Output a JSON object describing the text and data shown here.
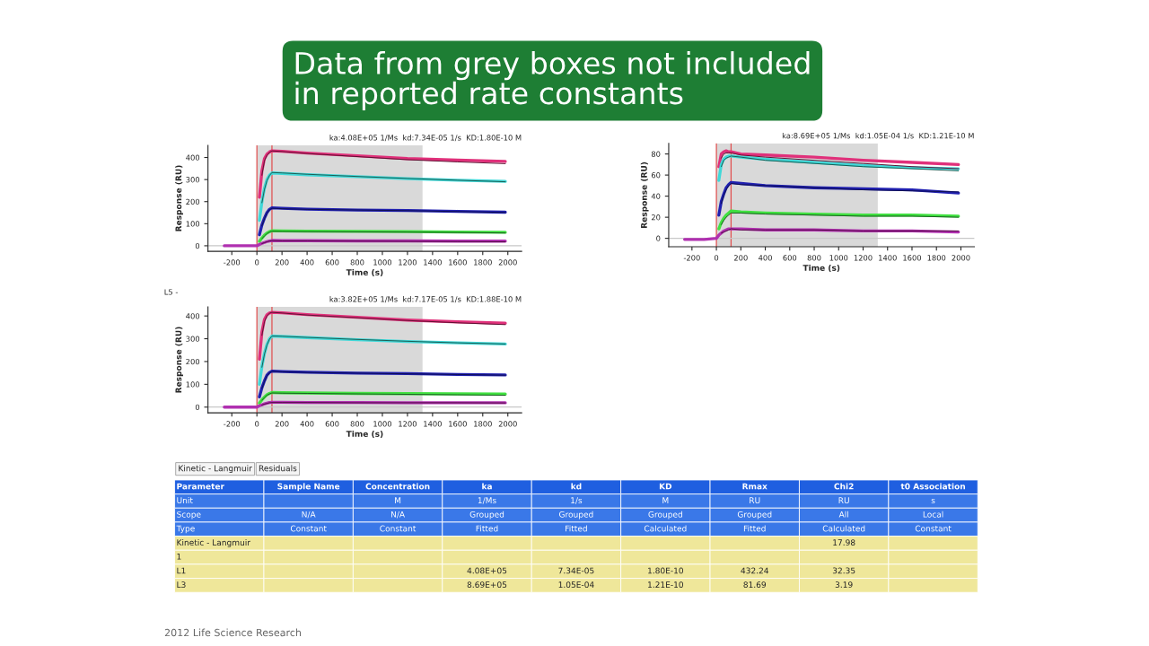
{
  "chart_data": [
    {
      "type": "other",
      "title": "Data from grey boxes not included\nin reported rate constants"
    },
    {
      "type": "line",
      "title": "ka:4.08E+05 1/Ms  kd:7.34E-05 1/s  KD:1.80E-10 M",
      "xlabel": "Time (s)",
      "ylabel": "Response (RU)",
      "x": [
        -260,
        -100,
        0,
        20,
        40,
        60,
        80,
        100,
        120,
        200,
        400,
        800,
        1200,
        1600,
        1980
      ],
      "xlim": [
        -390,
        2110
      ],
      "ylim": [
        -25,
        455
      ],
      "xticks": [
        -200,
        0,
        200,
        400,
        600,
        800,
        1000,
        1200,
        1400,
        1600,
        1800,
        2000
      ],
      "yticks": [
        0,
        100,
        200,
        300,
        400
      ],
      "bands": [
        {
          "axis": "x",
          "from": 0,
          "to": 1320,
          "color": "#d9d9d9"
        }
      ],
      "ref_lines": [
        {
          "axis": "x",
          "value": 0,
          "color": "#e05050"
        },
        {
          "axis": "x",
          "value": 120,
          "color": "#e05050"
        },
        {
          "axis": "y",
          "value": 0,
          "color": "#c8c8c8"
        }
      ],
      "series": [
        {
          "color": "#e0307a",
          "values": [
            null,
            null,
            null,
            220,
            340,
            395,
            415,
            425,
            430,
            428,
            420,
            408,
            395,
            388,
            382
          ]
        },
        {
          "color": "#5a1030",
          "values": [
            null,
            null,
            null,
            null,
            320,
            385,
            410,
            423,
            430,
            427,
            418,
            404,
            390,
            380,
            372
          ]
        },
        {
          "color": "#40d8d8",
          "values": [
            null,
            null,
            null,
            115,
            200,
            260,
            300,
            320,
            330,
            328,
            322,
            313,
            304,
            297,
            292
          ]
        },
        {
          "color": "#1a5a50",
          "values": [
            null,
            null,
            null,
            null,
            195,
            255,
            295,
            318,
            332,
            330,
            324,
            314,
            305,
            297,
            290
          ]
        },
        {
          "color": "#2020b0",
          "values": [
            null,
            null,
            null,
            50,
            95,
            125,
            150,
            165,
            172,
            170,
            166,
            162,
            160,
            156,
            152
          ]
        },
        {
          "color": "#101050",
          "values": [
            null,
            null,
            null,
            null,
            90,
            122,
            148,
            163,
            170,
            168,
            165,
            162,
            159,
            155,
            151
          ]
        },
        {
          "color": "#40e040",
          "values": [
            null,
            null,
            null,
            20,
            35,
            48,
            58,
            64,
            68,
            67,
            66,
            65,
            64,
            62,
            61
          ]
        },
        {
          "color": "#1a5a20",
          "values": [
            null,
            null,
            null,
            null,
            32,
            45,
            55,
            62,
            66,
            65,
            64,
            63,
            62,
            60,
            58
          ]
        },
        {
          "color": "#b030b0",
          "values": [
            0,
            0,
            0,
            6,
            11,
            15,
            19,
            22,
            24,
            23,
            23,
            22,
            22,
            21,
            21
          ]
        },
        {
          "color": "#500a40",
          "values": [
            null,
            null,
            null,
            null,
            10,
            14,
            18,
            21,
            23,
            22,
            22,
            21,
            20,
            19,
            18
          ]
        }
      ]
    },
    {
      "type": "line",
      "title": "ka:8.69E+05 1/Ms  kd:1.05E-04 1/s  KD:1.21E-10 M",
      "xlabel": "Time (s)",
      "ylabel": "Response (RU)",
      "x": [
        -260,
        -100,
        0,
        20,
        40,
        60,
        80,
        100,
        120,
        200,
        400,
        800,
        1200,
        1600,
        1980
      ],
      "xlim": [
        -390,
        2110
      ],
      "ylim": [
        -8,
        90
      ],
      "xticks": [
        -200,
        0,
        200,
        400,
        600,
        800,
        1000,
        1200,
        1400,
        1600,
        1800,
        2000
      ],
      "yticks": [
        0,
        20,
        40,
        60,
        80
      ],
      "bands": [
        {
          "axis": "x",
          "from": 0,
          "to": 1320,
          "color": "#d9d9d9"
        }
      ],
      "ref_lines": [
        {
          "axis": "x",
          "value": 0,
          "color": "#e05050"
        },
        {
          "axis": "x",
          "value": 120,
          "color": "#e05050"
        },
        {
          "axis": "y",
          "value": 0,
          "color": "#c8c8c8"
        }
      ],
      "series": [
        {
          "color": "#e0307a",
          "values": [
            null,
            null,
            null,
            68,
            80,
            82,
            83,
            82,
            82,
            80,
            79,
            77,
            74,
            72,
            70
          ]
        },
        {
          "color": "#5a1030",
          "values": [
            null,
            null,
            null,
            null,
            76,
            80,
            81,
            81,
            81,
            79,
            77,
            74,
            71,
            68,
            66
          ]
        },
        {
          "color": "#40d8d8",
          "values": [
            null,
            null,
            null,
            55,
            70,
            75,
            77,
            78,
            78,
            77,
            75,
            72,
            69,
            67,
            66
          ]
        },
        {
          "color": "#1a5a50",
          "values": [
            null,
            null,
            null,
            null,
            68,
            74,
            76,
            77,
            78,
            77,
            74,
            71,
            68,
            66,
            64
          ]
        },
        {
          "color": "#2020b0",
          "values": [
            null,
            null,
            null,
            22,
            35,
            42,
            48,
            51,
            53,
            52,
            50,
            48,
            47,
            46,
            43
          ]
        },
        {
          "color": "#101050",
          "values": [
            null,
            null,
            null,
            null,
            33,
            41,
            46,
            50,
            52,
            51,
            50,
            48,
            46,
            45,
            44
          ]
        },
        {
          "color": "#40e040",
          "values": [
            null,
            null,
            null,
            9,
            15,
            19,
            22,
            24,
            26,
            25,
            24,
            23,
            22,
            22,
            21
          ]
        },
        {
          "color": "#1a5a20",
          "values": [
            null,
            null,
            null,
            null,
            13,
            17,
            20,
            22,
            24,
            24,
            23,
            22,
            21,
            21,
            20
          ]
        },
        {
          "color": "#b030b0",
          "values": [
            -1,
            -1,
            0,
            3,
            5,
            7,
            8,
            9,
            9,
            9,
            8,
            8,
            7,
            7,
            6
          ]
        },
        {
          "color": "#500a40",
          "values": [
            null,
            null,
            null,
            null,
            5,
            6,
            7,
            8,
            9,
            8,
            8,
            8,
            7,
            7,
            7
          ]
        }
      ]
    },
    {
      "type": "line",
      "title": "ka:3.82E+05 1/Ms  kd:7.17E-05 1/s  KD:1.88E-10 M",
      "xlabel": "Time (s)",
      "ylabel": "Response (RU)",
      "annotations": [
        "L5 -"
      ],
      "x": [
        -260,
        -100,
        0,
        20,
        40,
        60,
        80,
        100,
        120,
        200,
        400,
        800,
        1200,
        1600,
        1980
      ],
      "xlim": [
        -390,
        2110
      ],
      "ylim": [
        -25,
        440
      ],
      "xticks": [
        -200,
        0,
        200,
        400,
        600,
        800,
        1000,
        1200,
        1400,
        1600,
        1800,
        2000
      ],
      "yticks": [
        0,
        100,
        200,
        300,
        400
      ],
      "bands": [
        {
          "axis": "x",
          "from": 0,
          "to": 1320,
          "color": "#d9d9d9"
        }
      ],
      "ref_lines": [
        {
          "axis": "x",
          "value": 0,
          "color": "#e05050"
        },
        {
          "axis": "x",
          "value": 120,
          "color": "#e05050"
        },
        {
          "axis": "y",
          "value": 0,
          "color": "#c8c8c8"
        }
      ],
      "series": [
        {
          "color": "#e0307a",
          "values": [
            null,
            null,
            null,
            210,
            330,
            385,
            405,
            413,
            416,
            414,
            406,
            394,
            382,
            374,
            368
          ]
        },
        {
          "color": "#5a1030",
          "values": [
            null,
            null,
            null,
            null,
            315,
            375,
            400,
            412,
            416,
            413,
            404,
            392,
            380,
            370,
            362
          ]
        },
        {
          "color": "#40d8d8",
          "values": [
            null,
            null,
            null,
            100,
            180,
            235,
            275,
            300,
            312,
            310,
            305,
            296,
            288,
            282,
            277
          ]
        },
        {
          "color": "#1a5a50",
          "values": [
            null,
            null,
            null,
            null,
            175,
            232,
            272,
            298,
            312,
            311,
            306,
            297,
            289,
            282,
            277
          ]
        },
        {
          "color": "#2020b0",
          "values": [
            null,
            null,
            null,
            45,
            85,
            115,
            140,
            152,
            158,
            156,
            153,
            149,
            147,
            143,
            141
          ]
        },
        {
          "color": "#101050",
          "values": [
            null,
            null,
            null,
            null,
            82,
            112,
            137,
            150,
            157,
            155,
            152,
            149,
            146,
            143,
            140
          ]
        },
        {
          "color": "#40e040",
          "values": [
            null,
            null,
            null,
            18,
            32,
            44,
            54,
            60,
            64,
            63,
            62,
            60,
            59,
            58,
            57
          ]
        },
        {
          "color": "#1a5a20",
          "values": [
            null,
            null,
            null,
            null,
            30,
            42,
            52,
            58,
            62,
            61,
            60,
            58,
            56,
            54,
            52
          ]
        },
        {
          "color": "#b030b0",
          "values": [
            0,
            0,
            0,
            6,
            10,
            14,
            17,
            20,
            21,
            21,
            20,
            20,
            19,
            19,
            19
          ]
        },
        {
          "color": "#500a40",
          "values": [
            null,
            null,
            null,
            null,
            9,
            13,
            16,
            19,
            20,
            20,
            20,
            19,
            19,
            19,
            18
          ]
        }
      ]
    },
    {
      "type": "other",
      "ylabel": "Parameter",
      "categories": [
        "Sample Name",
        "Concentration",
        "ka",
        "kd",
        "KD",
        "Rmax",
        "Chi2",
        "t0 Association"
      ],
      "y_categories": [
        "Unit",
        "Scope",
        "Type",
        "Kinetic - Langmuir",
        "1",
        "L1",
        "L3"
      ],
      "cell_labels": [
        [
          null,
          "M",
          "1/Ms",
          "1/s",
          "M",
          "RU",
          "RU",
          "s"
        ],
        [
          "N/A",
          "N/A",
          "Grouped",
          "Grouped",
          "Grouped",
          "Grouped",
          "All",
          "Local"
        ],
        [
          "Constant",
          "Constant",
          "Fitted",
          "Fitted",
          "Calculated",
          "Fitted",
          "Calculated",
          "Constant"
        ],
        [
          null,
          null,
          null,
          null,
          null,
          null,
          "17.98",
          null
        ],
        [
          null,
          null,
          null,
          null,
          null,
          null,
          null,
          null
        ],
        [
          null,
          null,
          "4.08E+05",
          "7.34E-05",
          "1.80E-10",
          "432.24",
          "32.35",
          null
        ],
        [
          null,
          null,
          "8.69E+05",
          "1.05E-04",
          "1.21E-10",
          "81.69",
          "3.19",
          null
        ]
      ],
      "annotations": [
        "Kinetic - Langmuir",
        "Residuals",
        "2012 Life Science Research"
      ]
    }
  ]
}
